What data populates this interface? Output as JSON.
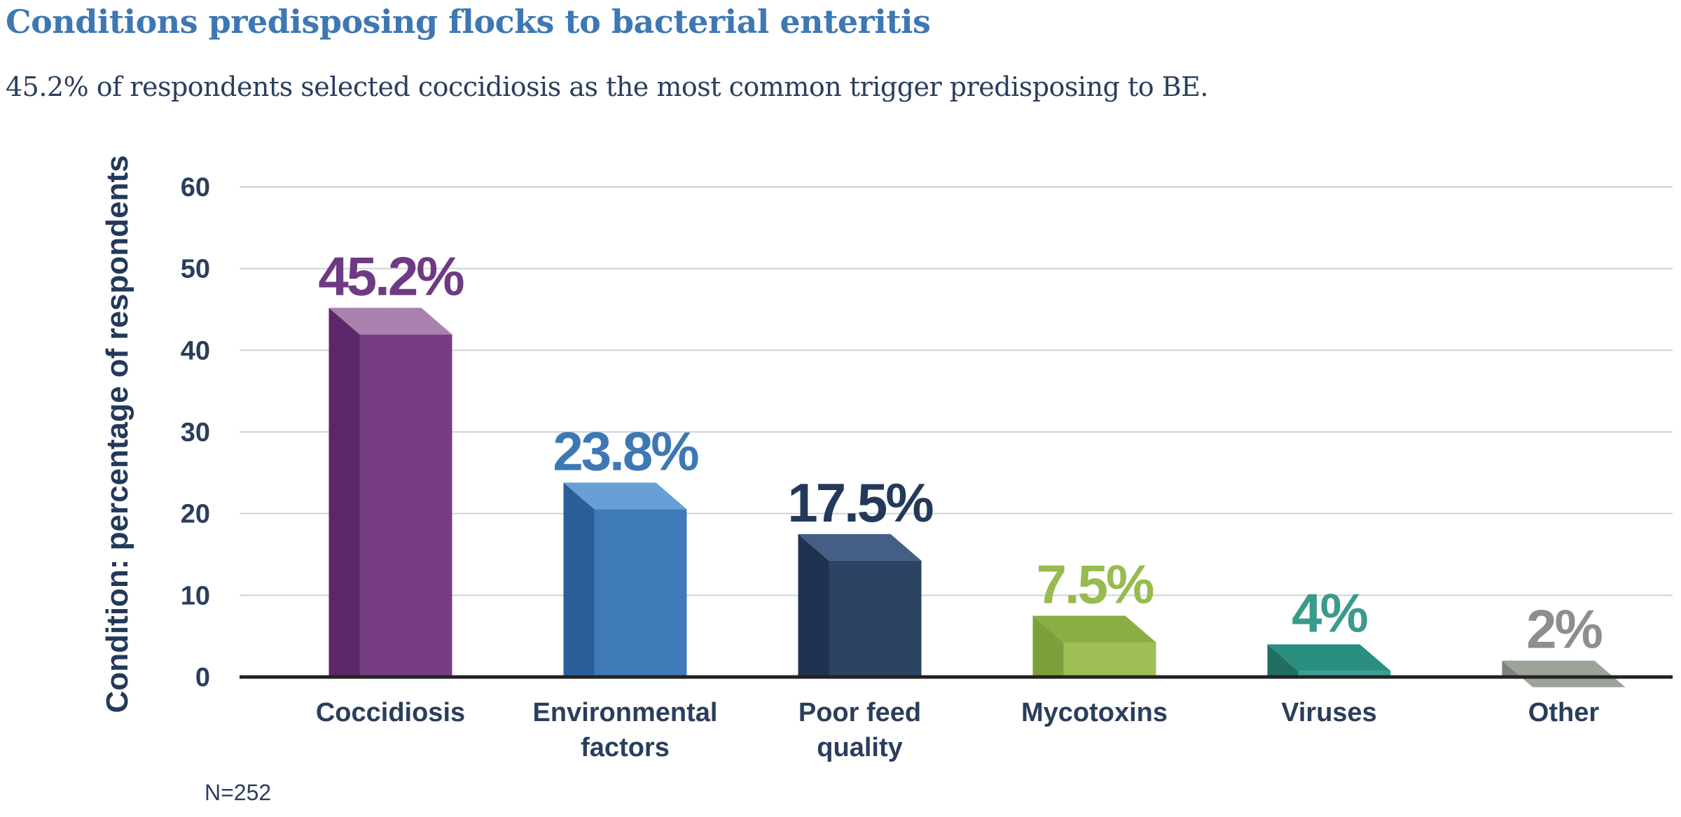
{
  "title": "Conditions predisposing flocks to bacterial enteritis",
  "subtitle": "45.2% of respondents selected coccidiosis as the most common trigger predisposing to BE.",
  "note": "N=252",
  "chart_data": {
    "type": "bar",
    "ylabel": "Condition: percentage of respondents",
    "xlabel": "",
    "ylim": [
      0,
      60
    ],
    "yticks": [
      0,
      10,
      20,
      30,
      40,
      50,
      60
    ],
    "grid": true,
    "categories": [
      [
        "Coccidiosis"
      ],
      [
        "Environmental",
        "factors"
      ],
      [
        "Poor feed",
        "quality"
      ],
      [
        "Mycotoxins"
      ],
      [
        "Viruses"
      ],
      [
        "Other"
      ]
    ],
    "values": [
      45.2,
      23.8,
      17.5,
      7.5,
      4,
      2
    ],
    "data_labels": [
      "45.2%",
      "23.8%",
      "17.5%",
      "7.5%",
      "4%",
      "2%"
    ],
    "colors": [
      {
        "front": "#773d82",
        "side": "#5c2768",
        "top": "#ab82ad",
        "label": "#6f3a84"
      },
      {
        "front": "#3e7bb8",
        "side": "#2c5f99",
        "top": "#66a0d6",
        "label": "#3d78b4"
      },
      {
        "front": "#2c4463",
        "side": "#1f3250",
        "top": "#455e86",
        "label": "#24395a"
      },
      {
        "front": "#9dbf55",
        "side": "#7ea03c",
        "top": "#8aad44",
        "label": "#97bb4e"
      },
      {
        "front": "#3aa095",
        "side": "#236e63",
        "top": "#2a8f80",
        "label": "#3a9a8c"
      },
      {
        "front": "#b9bcb2",
        "side": "#7e827c",
        "top": "#9ea39a",
        "label": "#8c8f8c"
      }
    ]
  }
}
